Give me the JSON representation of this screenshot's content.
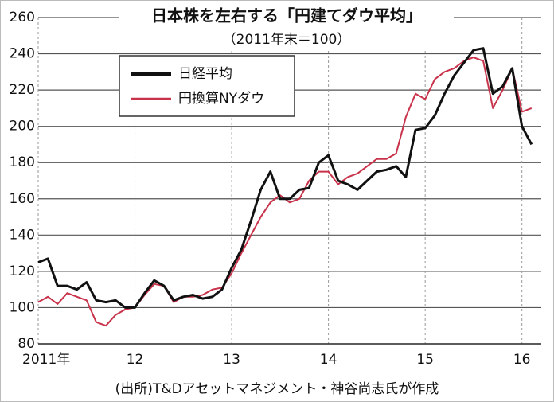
{
  "chart_data": {
    "type": "line",
    "title": "日本株を左右する「円建てダウ平均」",
    "subtitle": "（2011年末＝100）",
    "source": "(出所)T&Dアセットマネジメント・神谷尚志氏が作成",
    "x": [
      2011.0,
      2011.1,
      2011.2,
      2011.3,
      2011.4,
      2011.5,
      2011.6,
      2011.7,
      2011.8,
      2011.9,
      2012.0,
      2012.1,
      2012.2,
      2012.3,
      2012.4,
      2012.5,
      2012.6,
      2012.7,
      2012.8,
      2012.9,
      2013.0,
      2013.1,
      2013.2,
      2013.3,
      2013.4,
      2013.5,
      2013.6,
      2013.7,
      2013.8,
      2013.9,
      2014.0,
      2014.1,
      2014.2,
      2014.3,
      2014.4,
      2014.5,
      2014.6,
      2014.7,
      2014.8,
      2014.9,
      2015.0,
      2015.1,
      2015.2,
      2015.3,
      2015.4,
      2015.5,
      2015.6,
      2015.7,
      2015.8,
      2015.9,
      2016.0,
      2016.1
    ],
    "series": [
      {
        "name": "日経平均",
        "color": "#111111",
        "values": [
          125,
          127,
          112,
          112,
          110,
          114,
          104,
          103,
          104,
          100,
          100,
          108,
          115,
          112,
          104,
          106,
          107,
          105,
          106,
          110,
          122,
          132,
          148,
          165,
          175,
          160,
          160,
          165,
          166,
          180,
          184,
          170,
          168,
          165,
          170,
          175,
          176,
          178,
          172,
          198,
          199,
          206,
          218,
          228,
          235,
          242,
          243,
          218,
          222,
          232,
          200,
          190
        ]
      },
      {
        "name": "円換算NYダウ",
        "color": "#c8324a",
        "values": [
          103,
          106,
          102,
          108,
          106,
          104,
          92,
          90,
          96,
          99,
          100,
          107,
          113,
          112,
          103,
          106,
          106,
          107,
          110,
          111,
          119,
          130,
          140,
          150,
          158,
          162,
          158,
          160,
          170,
          175,
          175,
          168,
          172,
          174,
          178,
          182,
          182,
          185,
          205,
          218,
          215,
          226,
          230,
          232,
          236,
          238,
          236,
          210,
          220,
          232,
          208,
          210
        ]
      }
    ],
    "xlim": [
      2011,
      2016.2
    ],
    "xticks": [
      {
        "value": 2011,
        "label": "2011年"
      },
      {
        "value": 2012,
        "label": "12"
      },
      {
        "value": 2013,
        "label": "13"
      },
      {
        "value": 2014,
        "label": "14"
      },
      {
        "value": 2015,
        "label": "15"
      },
      {
        "value": 2016,
        "label": "16"
      }
    ],
    "ylim": [
      80,
      260
    ],
    "yticks": [
      80,
      100,
      120,
      140,
      160,
      180,
      200,
      220,
      240,
      260
    ],
    "grid": true
  }
}
